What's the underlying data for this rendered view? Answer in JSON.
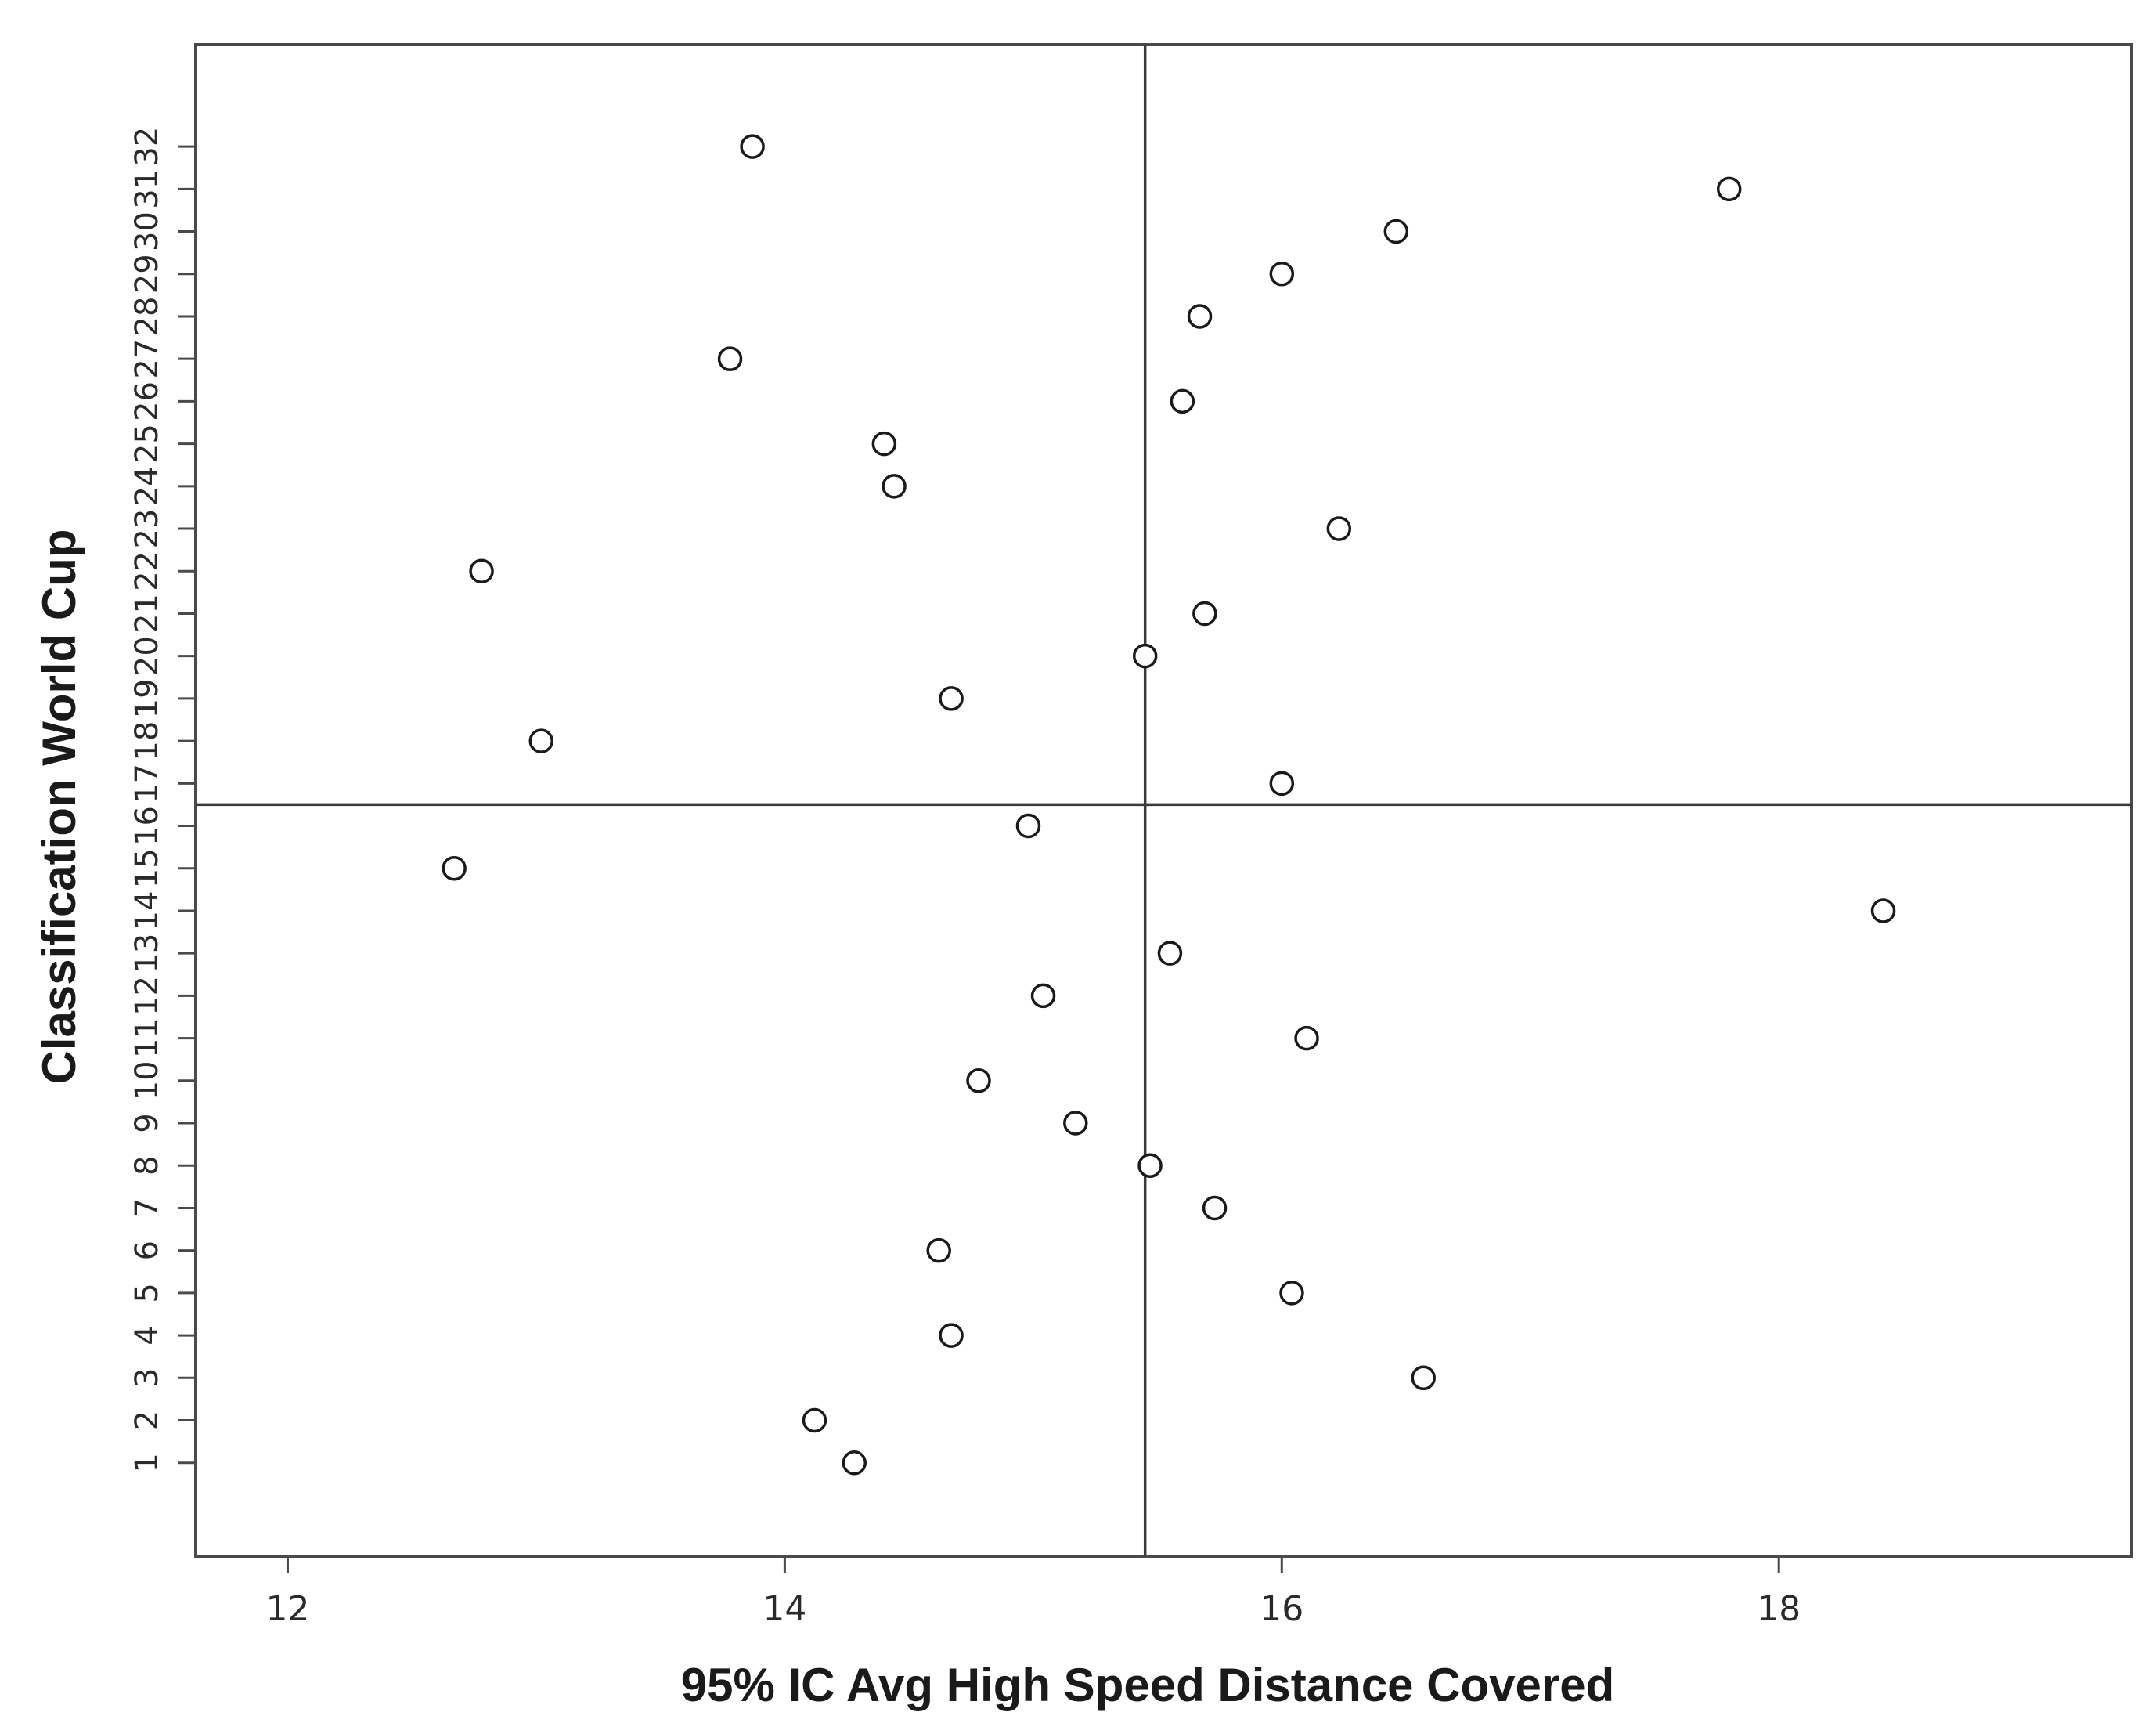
{
  "chart_data": {
    "type": "scatter",
    "xlabel": "95% IC Avg High Speed Distance Covered",
    "ylabel": "Classification World Cup",
    "xlim": [
      11.63,
      19.42
    ],
    "ylim": [
      -1.2,
      34.4
    ],
    "x_ticks": [
      12,
      14,
      16,
      18
    ],
    "y_ticks": [
      1,
      2,
      3,
      4,
      5,
      6,
      7,
      8,
      9,
      10,
      11,
      12,
      13,
      14,
      15,
      16,
      17,
      18,
      19,
      20,
      21,
      22,
      23,
      24,
      25,
      26,
      27,
      28,
      29,
      30,
      31,
      32
    ],
    "reference_lines": {
      "x": 15.45,
      "y": 16.5
    },
    "grid": false,
    "marker": "open-circle",
    "points": [
      {
        "x": 14.28,
        "y": 1
      },
      {
        "x": 14.12,
        "y": 2
      },
      {
        "x": 16.57,
        "y": 3
      },
      {
        "x": 14.67,
        "y": 4
      },
      {
        "x": 16.04,
        "y": 5
      },
      {
        "x": 14.62,
        "y": 6
      },
      {
        "x": 15.73,
        "y": 7
      },
      {
        "x": 15.47,
        "y": 8
      },
      {
        "x": 15.17,
        "y": 9
      },
      {
        "x": 14.78,
        "y": 10
      },
      {
        "x": 16.1,
        "y": 11
      },
      {
        "x": 15.04,
        "y": 12
      },
      {
        "x": 15.55,
        "y": 13
      },
      {
        "x": 18.42,
        "y": 14
      },
      {
        "x": 12.67,
        "y": 15
      },
      {
        "x": 14.98,
        "y": 16
      },
      {
        "x": 16.0,
        "y": 17
      },
      {
        "x": 13.02,
        "y": 18
      },
      {
        "x": 14.67,
        "y": 19
      },
      {
        "x": 15.45,
        "y": 20
      },
      {
        "x": 15.69,
        "y": 21
      },
      {
        "x": 12.78,
        "y": 22
      },
      {
        "x": 16.23,
        "y": 23
      },
      {
        "x": 14.44,
        "y": 24
      },
      {
        "x": 14.4,
        "y": 25
      },
      {
        "x": 15.6,
        "y": 26
      },
      {
        "x": 13.78,
        "y": 27
      },
      {
        "x": 15.67,
        "y": 28
      },
      {
        "x": 16.0,
        "y": 29
      },
      {
        "x": 16.46,
        "y": 30
      },
      {
        "x": 17.8,
        "y": 31
      },
      {
        "x": 13.87,
        "y": 32
      }
    ]
  }
}
